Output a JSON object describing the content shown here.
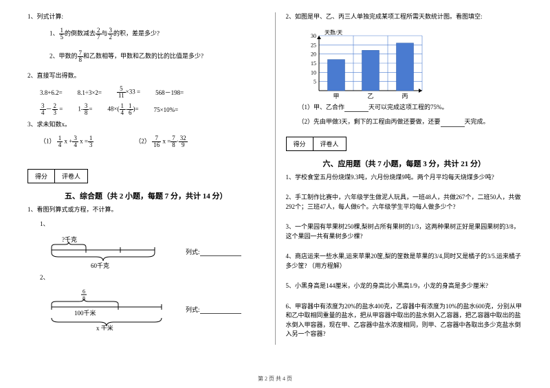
{
  "left": {
    "q1": {
      "title": "1、列式计算:",
      "sub1_prefix": "1、",
      "sub1_f1_n": "1",
      "sub1_f1_d": "5",
      "sub1_mid1": "的倒数减去",
      "sub1_f2_n": "2",
      "sub1_f2_d": "7",
      "sub1_mid2": "与",
      "sub1_f3_n": "3",
      "sub1_f3_d": "2",
      "sub1_suffix": "的积，差是多少?",
      "sub2_prefix": "2、甲数的",
      "sub2_f_n": "7",
      "sub2_f_d": "8",
      "sub2_suffix": "和乙数相等，甲数和乙数的比的比值是多少?"
    },
    "q2": {
      "title": "2、直接写出得数。",
      "r1a": "3.8+6.2=",
      "r1b": "8.1÷3×2=",
      "r1c_f_n": "5",
      "r1c_f_d": "11",
      "r1c_suffix": "×33 =",
      "r1d": "568－198=",
      "r2a_f1_n": "3",
      "r2a_f1_d": "4",
      "r2a_op": "－",
      "r2a_f2_n": "2",
      "r2a_f2_d": "3",
      "r2a_eq": " =",
      "r2b_prefix": "1-",
      "r2b_f_n": "3",
      "r2b_f_d": "8",
      "r2b_eq": "=",
      "r2c_prefix": "48×(",
      "r2c_f1_n": "1",
      "r2c_f1_d": "4",
      "r2c_op": "-",
      "r2c_f2_n": "1",
      "r2c_f2_d": "6",
      "r2c_suffix": ")=",
      "r2d": "75×10%="
    },
    "q3": {
      "title": "3、求未知数x。",
      "eq1_lbl": "（1）",
      "eq1_f1_n": "1",
      "eq1_f1_d": "4",
      "eq1_m1": " x +",
      "eq1_f2_n": "3",
      "eq1_f2_d": "4",
      "eq1_m2": " x =",
      "eq1_f3_n": "1",
      "eq1_f3_d": "3",
      "eq2_lbl": "（2）",
      "eq2_f1_n": "7",
      "eq2_f1_d": "16",
      "eq2_m1": " x =",
      "eq2_f2_n": "7",
      "eq2_f2_d": "8",
      "eq2_m2": "·",
      "eq2_f3_n": "32",
      "eq2_f3_d": "9"
    },
    "score": {
      "a": "得分",
      "b": "评卷人"
    },
    "sec5": {
      "title": "五、综合题（共 2 小题，每题 7 分，共计 14 分）",
      "intro": "1、看图列算式或方程，不计算。",
      "d1_lbl": "1、",
      "d1_top": "?千克",
      "d1_bottom": "60千克",
      "d1_lieshi": "列式:",
      "d2_lbl": "2、",
      "d2_top_n": "6",
      "d2_top_d": "8",
      "d2_mid": "100千米",
      "d2_bottom": "x 千米",
      "d2_lieshi": "列式:"
    }
  },
  "right": {
    "q2": {
      "title": "2、如图是甲、乙、丙三人单独完成某项工程所需天数统计图。看图填空:",
      "ylabel": "天数/天",
      "yticks": [
        "5",
        "10",
        "15",
        "20",
        "25",
        "30"
      ],
      "bars": [
        {
          "label": "甲",
          "value": 17,
          "color": "#4a7bd0"
        },
        {
          "label": "乙",
          "value": 22,
          "color": "#4a7bd0"
        },
        {
          "label": "丙",
          "value": 26,
          "color": "#4a7bd0"
        }
      ],
      "grid_color": "#4a7bd0",
      "bg_color": "#ffffff",
      "line1_a": "（1）甲、乙合作",
      "line1_b": "天可以完成这项工程的75%。",
      "line2_a": "（2）先由甲做3天，剩下的工程由丙做还要做，还要",
      "line2_b": "天完成。"
    },
    "score": {
      "a": "得分",
      "b": "评卷人"
    },
    "sec6": {
      "title": "六、应用题（共 7 小题，每题 3 分，共计 21 分）",
      "p1": "1、学校食堂五月份烧煤9.3吨，六月份烧煤9吨。两个月平均每天烧煤多少吨?",
      "p2": "2、手工制作比赛中，六年级学生做泥人玩具，一班48人，共做267个，二班50人，共做292个；三班47人，每人做6个。六年级学生平均每人做多少个?",
      "p3": "3、一个果园有苹果树250棵,梨树占所有果树的1/3，这两种果树正好是果园果树的3/8，这个果园一共有果树多少棵?",
      "p4": "4、商店运来一些水果,运来苹果20筐,梨的筐数是苹果的3/4,同时又是橘子的3/5.运来橘子多少筐?  （用方程解）",
      "p5": "5、小黑身高是144厘米，小龙的身高比小黑高1/9，小龙的身高是多少厘米?",
      "p6": "6、甲容器中有浓度为20%的盐水400克，乙容器中有浓度为10%的盐水600克，分别从甲和乙中取相同重量的盐水，把从甲容器中取出的盐水倒入乙容器，把乙容器中取出的盐水倒入甲容器，现在甲、乙容器中盐水浓度相同，则甲、乙容器中各取出多少克盐水倒入另一个容器?"
    }
  },
  "footer": "第 2 页 共 4 页"
}
